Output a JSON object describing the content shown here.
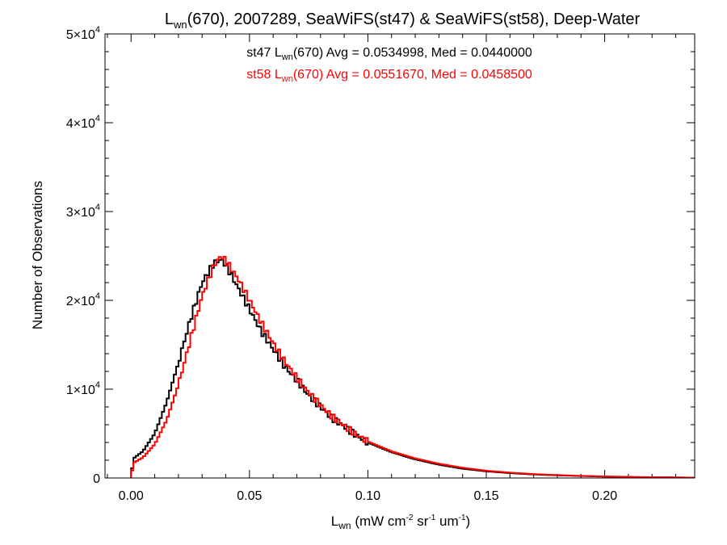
{
  "chart_data": {
    "type": "line",
    "title": {
      "main": "L",
      "main_sub": "wn",
      "rest": "(670), 2007289, SeaWiFS(st47) & SeaWiFS(st58), Deep-Water"
    },
    "xlabel": {
      "main": "L",
      "main_sub": "wn",
      "units_prefix": " (mW cm",
      "units_exp1": "-2",
      "units_mid": " sr",
      "units_exp2": "-1",
      "units_mid2": " um",
      "units_exp3": "-1",
      "units_suffix": ")"
    },
    "ylabel": "Number of Observations",
    "xlim": [
      -0.011,
      0.238
    ],
    "ylim": [
      0,
      50000
    ],
    "x_ticks": [
      {
        "value": 0.0,
        "label": "0.00"
      },
      {
        "value": 0.05,
        "label": "0.05"
      },
      {
        "value": 0.1,
        "label": "0.10"
      },
      {
        "value": 0.15,
        "label": "0.15"
      },
      {
        "value": 0.2,
        "label": "0.20"
      }
    ],
    "y_ticks": [
      {
        "value": 0,
        "mantissa": "0",
        "exp": ""
      },
      {
        "value": 10000,
        "mantissa": "1×10",
        "exp": "4"
      },
      {
        "value": 20000,
        "mantissa": "2×10",
        "exp": "4"
      },
      {
        "value": 30000,
        "mantissa": "3×10",
        "exp": "4"
      },
      {
        "value": 40000,
        "mantissa": "4×10",
        "exp": "4"
      },
      {
        "value": 50000,
        "mantissa": "5×10",
        "exp": "4"
      }
    ],
    "annotations": [
      {
        "prefix": "st47 L",
        "sub": "wn",
        "suffix": "(670) Avg = 0.0534998, Med = 0.0440000",
        "color": "#000000"
      },
      {
        "prefix": "st58 L",
        "sub": "wn",
        "suffix": "(670) Avg = 0.0551670, Med = 0.0458500",
        "color": "#ff0000"
      }
    ],
    "series": [
      {
        "color": "#000000",
        "points": [
          [
            0.0,
            0
          ],
          [
            0.001,
            2200
          ],
          [
            0.005,
            3000
          ],
          [
            0.01,
            5000
          ],
          [
            0.015,
            8500
          ],
          [
            0.02,
            13000
          ],
          [
            0.025,
            17800
          ],
          [
            0.03,
            22000
          ],
          [
            0.035,
            24200
          ],
          [
            0.038,
            24600
          ],
          [
            0.04,
            24000
          ],
          [
            0.045,
            21500
          ],
          [
            0.05,
            19000
          ],
          [
            0.055,
            16500
          ],
          [
            0.06,
            14500
          ],
          [
            0.065,
            12500
          ],
          [
            0.07,
            11000
          ],
          [
            0.075,
            9300
          ],
          [
            0.08,
            8000
          ],
          [
            0.085,
            6700
          ],
          [
            0.09,
            5800
          ],
          [
            0.095,
            4800
          ],
          [
            0.1,
            4000
          ],
          [
            0.11,
            2900
          ],
          [
            0.12,
            2100
          ],
          [
            0.13,
            1500
          ],
          [
            0.14,
            1050
          ],
          [
            0.15,
            750
          ],
          [
            0.16,
            550
          ],
          [
            0.17,
            400
          ],
          [
            0.18,
            300
          ],
          [
            0.19,
            220
          ],
          [
            0.2,
            160
          ],
          [
            0.21,
            110
          ],
          [
            0.22,
            80
          ],
          [
            0.23,
            60
          ],
          [
            0.238,
            40
          ]
        ]
      },
      {
        "color": "#ff0000",
        "points": [
          [
            0.0,
            0
          ],
          [
            0.001,
            1700
          ],
          [
            0.005,
            2300
          ],
          [
            0.01,
            3800
          ],
          [
            0.015,
            6500
          ],
          [
            0.02,
            10500
          ],
          [
            0.025,
            15500
          ],
          [
            0.03,
            20500
          ],
          [
            0.035,
            24000
          ],
          [
            0.038,
            25000
          ],
          [
            0.04,
            24500
          ],
          [
            0.045,
            22500
          ],
          [
            0.05,
            20000
          ],
          [
            0.055,
            17500
          ],
          [
            0.06,
            15200
          ],
          [
            0.065,
            13100
          ],
          [
            0.07,
            11300
          ],
          [
            0.075,
            9600
          ],
          [
            0.08,
            8200
          ],
          [
            0.085,
            6900
          ],
          [
            0.09,
            5900
          ],
          [
            0.095,
            4900
          ],
          [
            0.1,
            4100
          ],
          [
            0.11,
            3000
          ],
          [
            0.12,
            2200
          ],
          [
            0.13,
            1600
          ],
          [
            0.14,
            1150
          ],
          [
            0.15,
            820
          ],
          [
            0.16,
            600
          ],
          [
            0.17,
            440
          ],
          [
            0.18,
            330
          ],
          [
            0.19,
            240
          ],
          [
            0.2,
            175
          ],
          [
            0.21,
            125
          ],
          [
            0.22,
            90
          ],
          [
            0.23,
            65
          ],
          [
            0.238,
            45
          ]
        ]
      }
    ]
  }
}
